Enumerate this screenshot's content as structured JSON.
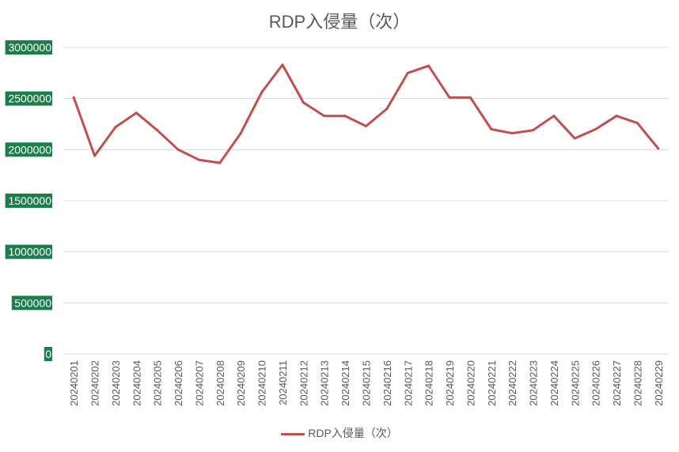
{
  "chart_data": {
    "type": "line",
    "title": "RDP入侵量（次）",
    "xlabel": "",
    "ylabel": "",
    "ylim": [
      0,
      3000000
    ],
    "yticks": [
      "0",
      "500000",
      "1000000",
      "1500000",
      "2000000",
      "2500000",
      "3000000"
    ],
    "grid": true,
    "legend": "bottom",
    "categories": [
      "20240201",
      "20240202",
      "20240203",
      "20240204",
      "20240205",
      "20240206",
      "20240207",
      "20240208",
      "20240209",
      "20240210",
      "20240211",
      "20240212",
      "20240213",
      "20240214",
      "20240215",
      "20240216",
      "20240217",
      "20240218",
      "20240219",
      "20240220",
      "20240221",
      "20240222",
      "20240223",
      "20240224",
      "20240225",
      "20240226",
      "20240227",
      "20240228",
      "20240229"
    ],
    "series": [
      {
        "name": "RDP入侵量（次）",
        "color": "#c0504d",
        "values": [
          2510000,
          1940000,
          2220000,
          2360000,
          2190000,
          2000000,
          1900000,
          1870000,
          2160000,
          2560000,
          2830000,
          2460000,
          2330000,
          2330000,
          2230000,
          2400000,
          2750000,
          2820000,
          2510000,
          2510000,
          2200000,
          2160000,
          2190000,
          2330000,
          2110000,
          2200000,
          2330000,
          2260000,
          2010000
        ]
      }
    ],
    "tick_label_bg": "#1a7f4b"
  }
}
